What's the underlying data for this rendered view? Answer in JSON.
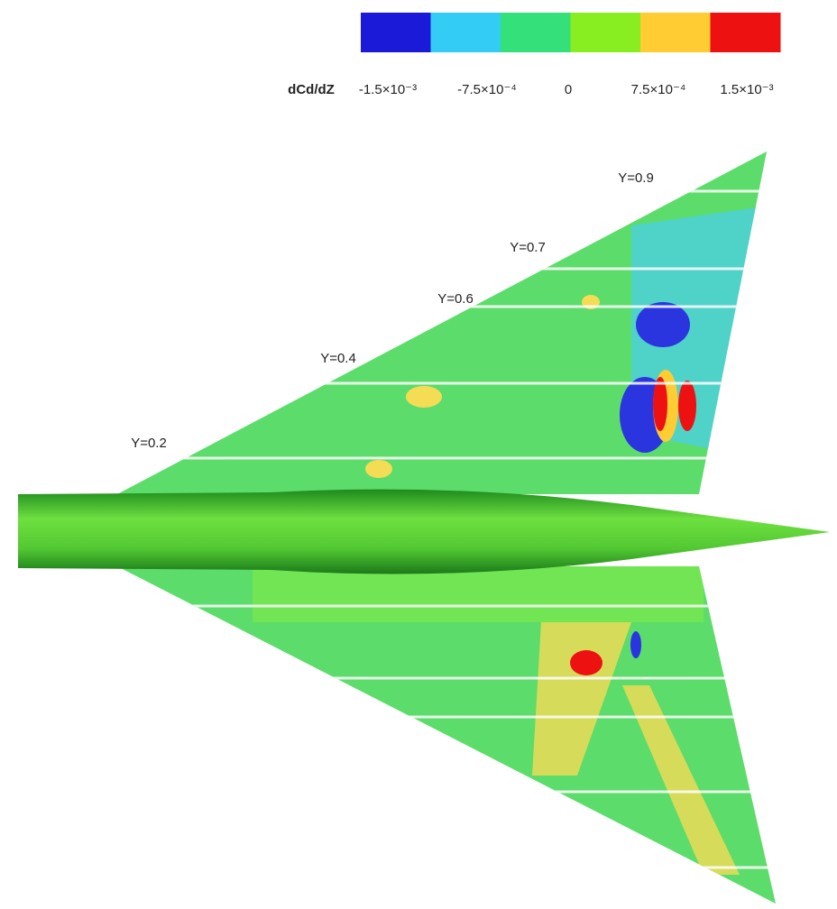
{
  "legend": {
    "title": "dCd/dZ",
    "colors": [
      "#1a1ad8",
      "#33ccf5",
      "#33e07a",
      "#88ee22",
      "#ffcc33",
      "#ee1111"
    ],
    "labels": [
      "-1.5×10⁻³",
      "-7.5×10⁻⁴",
      "0",
      "7.5×10⁻⁴",
      "1.5×10⁻³"
    ]
  },
  "stations": [
    "Y=0.2",
    "Y=0.4",
    "Y=0.6",
    "Y=0.7",
    "Y=0.9"
  ]
}
